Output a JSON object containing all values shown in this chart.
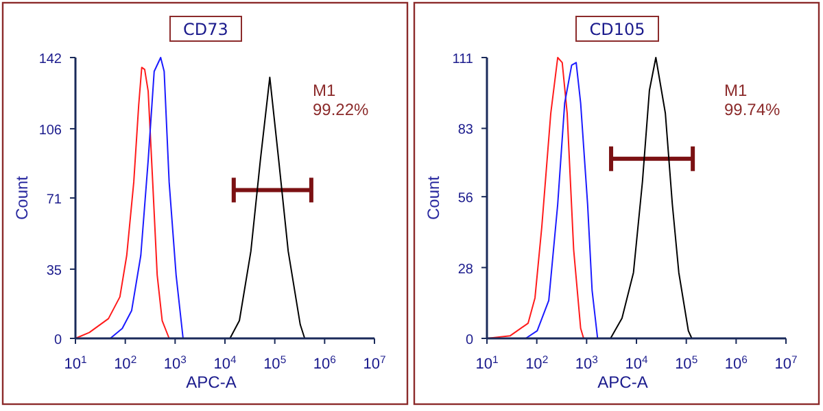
{
  "chart_data": [
    {
      "type": "line",
      "title": "CD73",
      "xlabel": "APC-A",
      "ylabel": "Count",
      "log": "x",
      "xlim": [
        10,
        10000000
      ],
      "ylim": [
        0,
        142
      ],
      "yticks": [
        0,
        35,
        71,
        106,
        142
      ],
      "xticks": [
        {
          "value": 10,
          "label": "10$^{1}$"
        },
        {
          "value": 100,
          "label": "10$^{2}$"
        },
        {
          "value": 1000,
          "label": "10$^{3}$"
        },
        {
          "value": 10000,
          "label": "10$^{4}$"
        },
        {
          "value": 100000,
          "label": "10$^{5}$"
        },
        {
          "value": 1000000,
          "label": "10$^{6}$"
        },
        {
          "value": 10000000,
          "label": "10$^{7}$"
        }
      ],
      "annotations": [
        "M1",
        "99.22%"
      ],
      "grid": false,
      "series": [
        {
          "type": "line",
          "color": "#7b1113",
          "x": [
            15000,
            540000
          ],
          "values": [
            75,
            75
          ]
        },
        {
          "color": "#ff1a1a",
          "x": [
            10,
            19,
            46,
            78,
            107,
            148,
            186,
            214,
            245,
            288,
            355,
            437,
            550,
            759
          ],
          "values": [
            0,
            3,
            10,
            21,
            42,
            79,
            118,
            137,
            136,
            125,
            79,
            32,
            9,
            0
          ]
        },
        {
          "color": "#1a1aff",
          "x": [
            50,
            87,
            134,
            205,
            288,
            380,
            513,
            603,
            759,
            1047,
            1445
          ],
          "values": [
            0,
            5,
            14,
            42,
            90,
            135,
            142,
            135,
            79,
            32,
            0
          ]
        },
        {
          "color": "#000000",
          "x": [
            12600,
            19500,
            33100,
            51300,
            79400,
            120000,
            186000,
            324000,
            398000
          ],
          "values": [
            0,
            9,
            44,
            90,
            132,
            90,
            44,
            7,
            0
          ]
        }
      ]
    },
    {
      "type": "line",
      "title": "CD105",
      "xlabel": "APC-A",
      "ylabel": "Count",
      "log": "x",
      "xlim": [
        10,
        10000000
      ],
      "ylim": [
        0,
        111
      ],
      "yticks": [
        0,
        28,
        56,
        83,
        111
      ],
      "xticks": [
        {
          "value": 10,
          "label": "10$^{1}$"
        },
        {
          "value": 100,
          "label": "10$^{2}$"
        },
        {
          "value": 1000,
          "label": "10$^{3}$"
        },
        {
          "value": 10000,
          "label": "10$^{4}$"
        },
        {
          "value": 100000,
          "label": "10$^{5}$"
        },
        {
          "value": 1000000,
          "label": "10$^{6}$"
        },
        {
          "value": 10000000,
          "label": "10$^{7}$"
        }
      ],
      "annotations": [
        "M1",
        "99.74%"
      ],
      "grid": false,
      "series": [
        {
          "type": "line",
          "color": "#7b1113",
          "x": [
            3100,
            135000
          ],
          "values": [
            71,
            71
          ]
        },
        {
          "color": "#ff1a1a",
          "x": [
            10,
            29,
            67,
            92,
            126,
            191,
            263,
            324,
            407,
            550,
            759,
            871
          ],
          "values": [
            0,
            1,
            6,
            16,
            44,
            89,
            111,
            109,
            89,
            35,
            4,
            0
          ]
        },
        {
          "color": "#1a1aff",
          "x": [
            60,
            102,
            174,
            263,
            363,
            501,
            617,
            759,
            1047,
            1288,
            1660
          ],
          "values": [
            0,
            3,
            15,
            53,
            93,
            108,
            109,
            93,
            53,
            19,
            0
          ]
        },
        {
          "color": "#000000",
          "x": [
            3020,
            5130,
            8710,
            13200,
            18200,
            24500,
            38000,
            52500,
            70800,
            110000,
            129000
          ],
          "values": [
            0,
            8,
            26,
            62,
            98,
            111,
            89,
            53,
            26,
            3,
            0
          ]
        }
      ]
    }
  ]
}
